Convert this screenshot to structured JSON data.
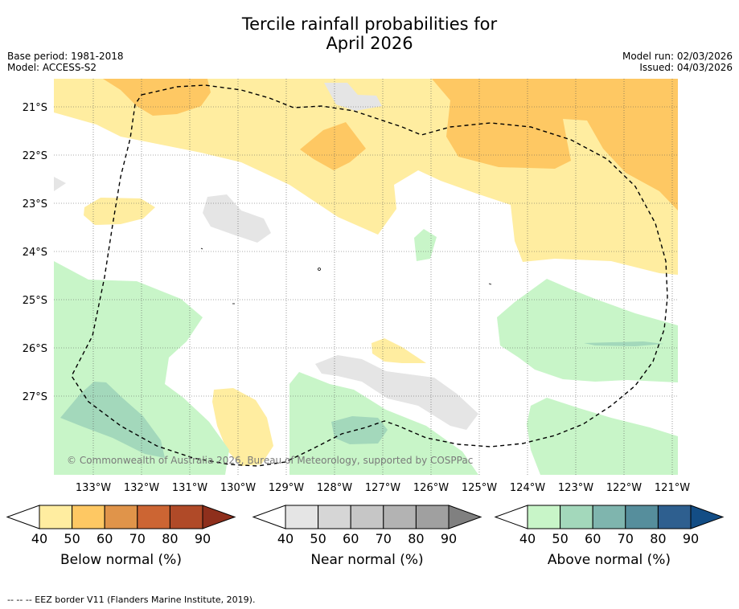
{
  "title_line1": "Tercile rainfall probabilities for",
  "title_line2": "April 2026",
  "base_period": "Base period: 1981-2018",
  "model": "Model: ACCESS-S2",
  "model_run": "Model run: 02/03/2026",
  "issued": "Issued: 04/03/2026",
  "copyright": "© Commonwealth of Australia 2026, Bureau of Meteorology, supported by COSPPac",
  "lat_labels": [
    "21°S",
    "22°S",
    "23°S",
    "24°S",
    "25°S",
    "26°S",
    "27°S"
  ],
  "lon_labels": [
    "133°W",
    "132°W",
    "131°W",
    "130°W",
    "129°W",
    "128°W",
    "127°W",
    "126°W",
    "125°W",
    "124°W",
    "123°W",
    "122°W",
    "121°W"
  ],
  "colorbars": [
    {
      "label": "Below normal (%)",
      "ticks": [
        "40",
        "50",
        "60",
        "70",
        "80",
        "90"
      ],
      "colors": [
        "#ffffff",
        "#ffeda0",
        "#fec863",
        "#e0944a",
        "#cc6533",
        "#b04a28",
        "#8e2f1c"
      ]
    },
    {
      "label": "Near normal (%)",
      "ticks": [
        "40",
        "50",
        "60",
        "70",
        "80",
        "90"
      ],
      "colors": [
        "#ffffff",
        "#e5e5e5",
        "#d6d6d6",
        "#c6c6c6",
        "#b3b3b3",
        "#a0a0a0",
        "#808080"
      ]
    },
    {
      "label": "Above normal (%)",
      "ticks": [
        "40",
        "50",
        "60",
        "70",
        "80",
        "90"
      ],
      "colors": [
        "#ffffff",
        "#c8f5c8",
        "#a3d8bb",
        "#7fb5ae",
        "#568e9c",
        "#2e5f8f",
        "#134d85"
      ]
    }
  ],
  "footnote": "--  --  -- EEZ border V11 (Flanders Marine Institute, 2019)."
}
